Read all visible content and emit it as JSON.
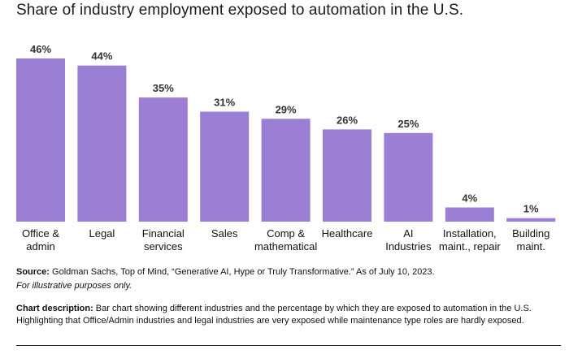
{
  "title": "Share of industry employment exposed to automation in the U.S.",
  "chart_data": {
    "type": "bar",
    "title": "Share of industry employment exposed to automation in the U.S.",
    "categories": [
      [
        "Office &",
        "admin"
      ],
      [
        "Legal"
      ],
      [
        "Financial",
        "services"
      ],
      [
        "Sales"
      ],
      [
        "Comp &",
        "mathematical"
      ],
      [
        "Healthcare"
      ],
      [
        "AI",
        "Industries"
      ],
      [
        "Installation,",
        "maint., repair"
      ],
      [
        "Building",
        "maint."
      ]
    ],
    "values": [
      46,
      44,
      35,
      31,
      29,
      26,
      25,
      4,
      1
    ],
    "value_labels": [
      "46%",
      "44%",
      "35%",
      "31%",
      "29%",
      "26%",
      "25%",
      "4%",
      "1%"
    ],
    "unit": "%",
    "xlabel": "",
    "ylabel": "",
    "ylim": [
      0,
      46
    ],
    "color": "#9b7fd4",
    "grid": false,
    "legend": "none"
  },
  "source": {
    "label": "Source:",
    "text": " Goldman Sachs, Top of Mind, “Generative AI, Hype or Truly Transformative.” As of July 10, 2023.",
    "note": "For illustrative purposes only."
  },
  "description": {
    "label": "Chart description:",
    "text": " Bar chart showing different industries and the percentage by which they are exposed to automation in the U.S. Highlighting that Office/Admin industries and legal industries are very exposed while maintenance type roles are hardly exposed."
  }
}
